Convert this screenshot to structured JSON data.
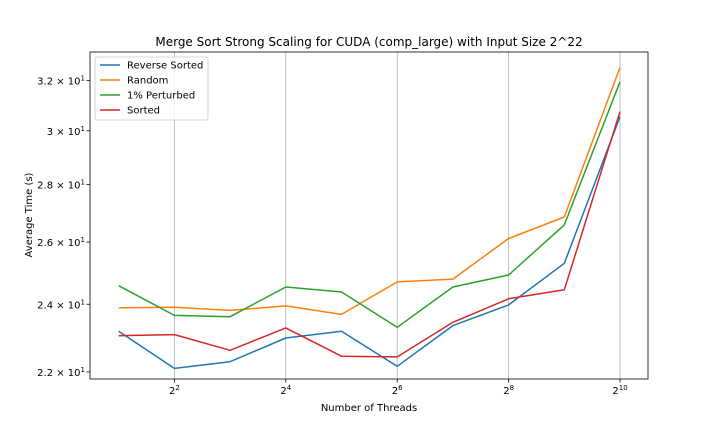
{
  "chart_data": {
    "type": "line",
    "title": "Merge Sort Strong Scaling for CUDA (comp_large) with Input Size 2^22",
    "xlabel": "Number of Threads",
    "ylabel": "Average Time (s)",
    "x_scale": "log2",
    "y_scale": "log",
    "x": [
      2,
      4,
      8,
      16,
      32,
      64,
      128,
      256,
      512,
      1024
    ],
    "x_ticks": [
      {
        "value": 4,
        "base": "2",
        "exp": "2"
      },
      {
        "value": 16,
        "base": "2",
        "exp": "4"
      },
      {
        "value": 64,
        "base": "2",
        "exp": "6"
      },
      {
        "value": 256,
        "base": "2",
        "exp": "8"
      },
      {
        "value": 1024,
        "base": "2",
        "exp": "10"
      }
    ],
    "y_ticks": [
      {
        "value": 22,
        "mant": "2.2",
        "exp": "1"
      },
      {
        "value": 24,
        "mant": "2.4",
        "exp": "1"
      },
      {
        "value": 26,
        "mant": "2.6",
        "exp": "1"
      },
      {
        "value": 28,
        "mant": "2.8",
        "exp": "1"
      },
      {
        "value": 30,
        "mant": "3",
        "exp": "1"
      },
      {
        "value": 32,
        "mant": "3.2",
        "exp": "1"
      }
    ],
    "xlim": [
      1.4,
      1450
    ],
    "ylim": [
      21.8,
      33.2
    ],
    "grid": "vertical at major x ticks",
    "legend_position": "top-left",
    "series": [
      {
        "name": "Reverse Sorted",
        "color": "#1f77b4",
        "values": [
          23.18,
          22.1,
          22.29,
          22.98,
          23.18,
          22.16,
          23.35,
          23.98,
          25.3,
          30.55
        ]
      },
      {
        "name": "Random",
        "color": "#ff7f0e",
        "values": [
          23.89,
          23.91,
          23.81,
          23.95,
          23.69,
          24.7,
          24.79,
          26.12,
          26.85,
          32.55
        ]
      },
      {
        "name": "1% Perturbed",
        "color": "#2ca02c",
        "values": [
          24.58,
          23.66,
          23.62,
          24.54,
          24.38,
          23.3,
          24.54,
          24.92,
          26.58,
          31.95
        ]
      },
      {
        "name": "Sorted",
        "color": "#d62728",
        "values": [
          23.05,
          23.08,
          22.62,
          23.28,
          22.45,
          22.43,
          23.45,
          24.17,
          24.45,
          30.75
        ]
      }
    ]
  }
}
